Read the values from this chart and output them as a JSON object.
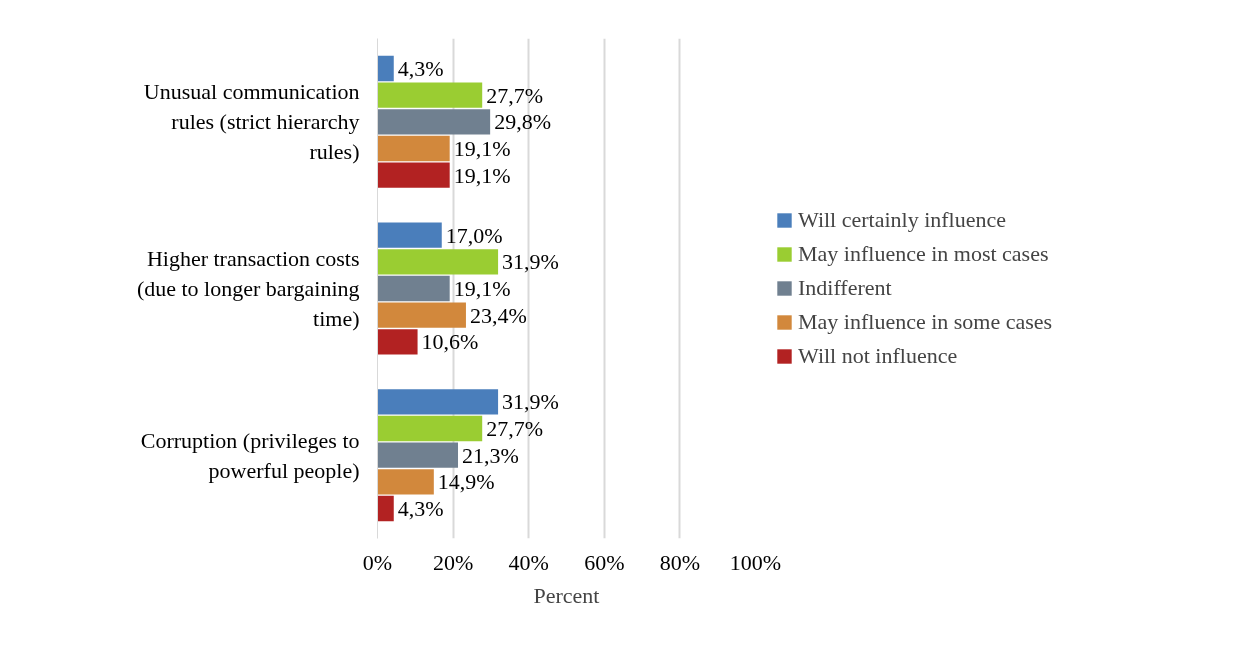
{
  "chart_data": {
    "type": "bar",
    "orientation": "horizontal",
    "xlabel": "Percent",
    "categories": [
      "Unusual communication rules (strict hierarchy rules)",
      "Higher transaction costs (due to longer bargaining time)",
      "Corruption (privileges to powerful people)"
    ],
    "series": [
      {
        "name": "Will certainly influence",
        "color": "#4a7ebb",
        "values": [
          4.3,
          17.0,
          31.9
        ],
        "value_labels": [
          "4,3%",
          "17,0%",
          "31,9%"
        ]
      },
      {
        "name": "May influence in most cases",
        "color": "#9acd32",
        "values": [
          27.7,
          31.9,
          27.7
        ],
        "value_labels": [
          "27,7%",
          "31,9%",
          "27,7%"
        ]
      },
      {
        "name": "Indifferent",
        "color": "#708090",
        "values": [
          29.8,
          19.1,
          21.3
        ],
        "value_labels": [
          "29,8%",
          "19,1%",
          "21,3%"
        ]
      },
      {
        "name": "May influence in some cases",
        "color": "#d2883c",
        "values": [
          19.1,
          23.4,
          14.9
        ],
        "value_labels": [
          "19,1%",
          "23,4%",
          "14,9%"
        ]
      },
      {
        "name": "Will not influence",
        "color": "#b22222",
        "values": [
          19.1,
          10.6,
          4.3
        ],
        "value_labels": [
          "19,1%",
          "10,6%",
          "4,3%"
        ]
      }
    ],
    "xlim": [
      0,
      100
    ],
    "xticks": [
      {
        "value": 0,
        "label": "0%"
      },
      {
        "value": 20,
        "label": "20%"
      },
      {
        "value": 40,
        "label": "40%"
      },
      {
        "value": 60,
        "label": "60%"
      },
      {
        "value": 80,
        "label": "80%"
      },
      {
        "value": 100,
        "label": "100%"
      }
    ],
    "grid": "x",
    "legend": "right"
  }
}
